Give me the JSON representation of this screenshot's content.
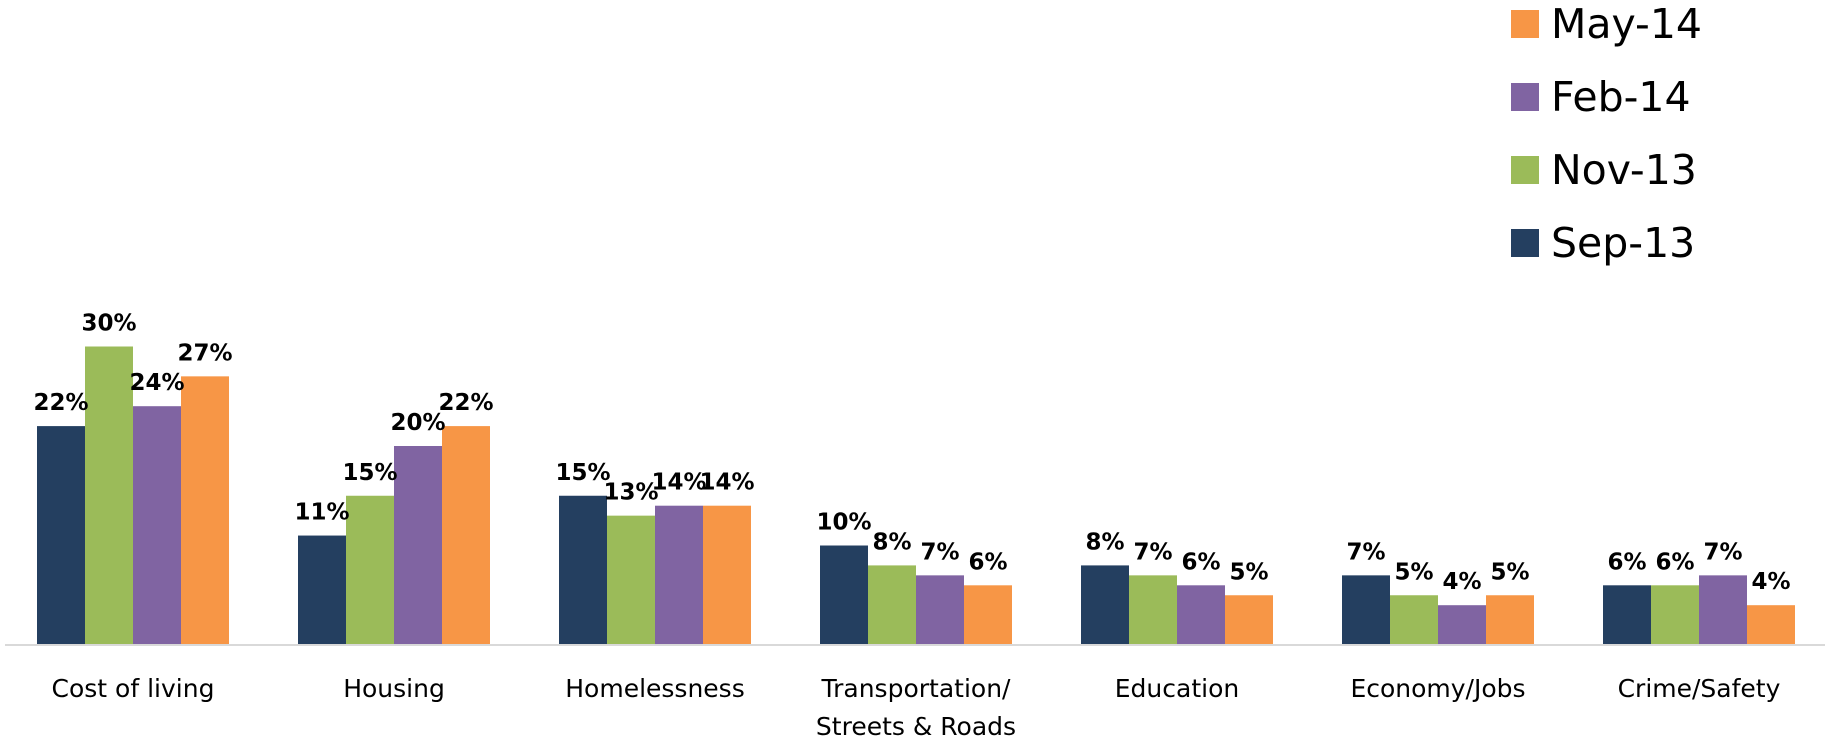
{
  "chart_data": {
    "type": "bar",
    "categories": [
      [
        "Cost of living"
      ],
      [
        "Housing"
      ],
      [
        "Homelessness"
      ],
      [
        "Transportation/",
        "Streets & Roads"
      ],
      [
        "Education"
      ],
      [
        "Economy/Jobs"
      ],
      [
        "Crime/Safety"
      ]
    ],
    "series": [
      {
        "name": "Sep-13",
        "color": "#243F60",
        "values": [
          22,
          11,
          15,
          10,
          8,
          7,
          6
        ],
        "labels": [
          "22%",
          "11%",
          "15%",
          "10%",
          "8%",
          "7%",
          "6%"
        ]
      },
      {
        "name": "Nov-13",
        "color": "#9BBB59",
        "values": [
          30,
          15,
          13,
          8,
          7,
          5,
          6
        ],
        "labels": [
          "30%",
          "15%",
          "13%",
          "8%",
          "7%",
          "5%",
          "6%"
        ]
      },
      {
        "name": "Feb-14",
        "color": "#8064A2",
        "values": [
          24,
          20,
          14,
          7,
          6,
          4,
          7
        ],
        "labels": [
          "24%",
          "20%",
          "14%",
          "7%",
          "6%",
          "4%",
          "7%"
        ]
      },
      {
        "name": "May-14",
        "color": "#F79646",
        "values": [
          27,
          22,
          14,
          6,
          5,
          5,
          4
        ],
        "labels": [
          "27%",
          "22%",
          "14%",
          "6%",
          "5%",
          "5%",
          "4%"
        ]
      }
    ],
    "legend_order": [
      "May-14",
      "Feb-14",
      "Nov-13",
      "Sep-13"
    ],
    "legend_position": "top-right",
    "ylim": [
      0,
      40
    ],
    "grid": false,
    "axis_color": "#D9D9D9"
  }
}
